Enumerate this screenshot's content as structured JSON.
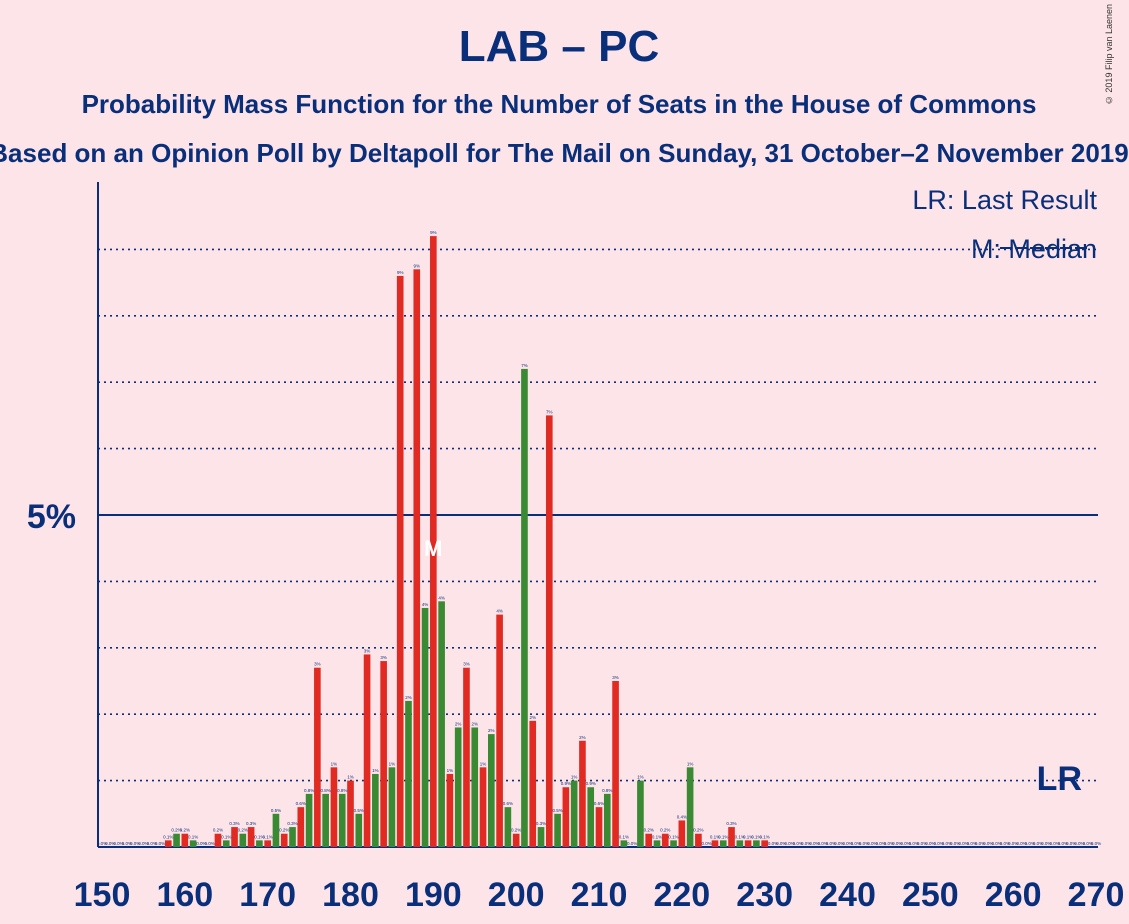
{
  "header": {
    "title": "LAB – PC",
    "subtitle": "Probability Mass Function for the Number of Seats in the House of Commons",
    "subtitle2": "Based on an Opinion Poll by Deltapoll for The Mail on Sunday, 31 October–2 November 2019",
    "copyright": "© 2019 Filip van Laenen"
  },
  "legend": {
    "lr": "LR: Last Result",
    "m": "M: Median"
  },
  "markers": {
    "lr_label": "LR",
    "lr_seat": 270,
    "median_label": "M",
    "median_seat": 190
  },
  "colors": {
    "red": "#e02a22",
    "green": "#3a8a34",
    "axis": "#0a2f7a",
    "background": "#fde4e8"
  },
  "chart_data": {
    "type": "bar",
    "xlim": [
      150,
      270
    ],
    "ylim": [
      0,
      10
    ],
    "x_ticks": [
      150,
      160,
      170,
      180,
      190,
      200,
      210,
      220,
      230,
      240,
      250,
      260,
      270
    ],
    "y_tick_label": "5%",
    "y_major": 5,
    "grid_minor": [
      1,
      2,
      3,
      4,
      6,
      7,
      8,
      9
    ],
    "series": [
      {
        "name": "red",
        "values": [
          [
            150,
            0
          ],
          [
            152,
            0
          ],
          [
            154,
            0
          ],
          [
            156,
            0
          ],
          [
            158,
            0.1
          ],
          [
            160,
            0.2
          ],
          [
            162,
            0
          ],
          [
            164,
            0.2
          ],
          [
            166,
            0.3
          ],
          [
            168,
            0.3
          ],
          [
            170,
            0.1
          ],
          [
            172,
            0.2
          ],
          [
            174,
            0.6
          ],
          [
            176,
            2.7
          ],
          [
            178,
            1.2
          ],
          [
            180,
            1.0
          ],
          [
            182,
            2.9
          ],
          [
            184,
            2.8
          ],
          [
            186,
            8.6
          ],
          [
            188,
            8.7
          ],
          [
            190,
            9.2
          ],
          [
            192,
            1.1
          ],
          [
            194,
            2.7
          ],
          [
            196,
            1.2
          ],
          [
            198,
            3.5
          ],
          [
            200,
            0.2
          ],
          [
            202,
            1.9
          ],
          [
            204,
            6.5
          ],
          [
            206,
            0.9
          ],
          [
            208,
            1.6
          ],
          [
            210,
            0.6
          ],
          [
            212,
            2.5
          ],
          [
            214,
            0
          ],
          [
            216,
            0.2
          ],
          [
            218,
            0.2
          ],
          [
            220,
            0.4
          ],
          [
            222,
            0.2
          ],
          [
            224,
            0.1
          ],
          [
            226,
            0.3
          ],
          [
            228,
            0.1
          ],
          [
            230,
            0.1
          ],
          [
            232,
            0
          ],
          [
            234,
            0
          ],
          [
            236,
            0
          ],
          [
            238,
            0
          ],
          [
            240,
            0
          ],
          [
            242,
            0
          ],
          [
            244,
            0
          ],
          [
            246,
            0
          ],
          [
            248,
            0
          ],
          [
            250,
            0
          ],
          [
            252,
            0
          ],
          [
            254,
            0
          ],
          [
            256,
            0
          ],
          [
            258,
            0
          ],
          [
            260,
            0
          ],
          [
            262,
            0
          ],
          [
            264,
            0
          ],
          [
            266,
            0
          ],
          [
            268,
            0
          ],
          [
            270,
            0
          ]
        ]
      },
      {
        "name": "green",
        "values": [
          [
            151,
            0
          ],
          [
            153,
            0
          ],
          [
            155,
            0
          ],
          [
            157,
            0
          ],
          [
            159,
            0.2
          ],
          [
            161,
            0.1
          ],
          [
            163,
            0
          ],
          [
            165,
            0.1
          ],
          [
            167,
            0.2
          ],
          [
            169,
            0.1
          ],
          [
            171,
            0.5
          ],
          [
            173,
            0.3
          ],
          [
            175,
            0.8
          ],
          [
            177,
            0.8
          ],
          [
            179,
            0.8
          ],
          [
            181,
            0.5
          ],
          [
            183,
            1.1
          ],
          [
            185,
            1.2
          ],
          [
            187,
            2.2
          ],
          [
            189,
            3.6
          ],
          [
            191,
            3.7
          ],
          [
            193,
            1.8
          ],
          [
            195,
            1.8
          ],
          [
            197,
            1.7
          ],
          [
            199,
            0.6
          ],
          [
            201,
            7.2
          ],
          [
            203,
            0.3
          ],
          [
            205,
            0.5
          ],
          [
            207,
            1.0
          ],
          [
            209,
            0.9
          ],
          [
            211,
            0.8
          ],
          [
            213,
            0.1
          ],
          [
            215,
            1.0
          ],
          [
            217,
            0.1
          ],
          [
            219,
            0.1
          ],
          [
            221,
            1.2
          ],
          [
            223,
            0
          ],
          [
            225,
            0.1
          ],
          [
            227,
            0.1
          ],
          [
            229,
            0.1
          ],
          [
            231,
            0
          ],
          [
            233,
            0
          ],
          [
            235,
            0
          ],
          [
            237,
            0
          ],
          [
            239,
            0
          ],
          [
            241,
            0
          ],
          [
            243,
            0
          ],
          [
            245,
            0
          ],
          [
            247,
            0
          ],
          [
            249,
            0
          ],
          [
            251,
            0
          ],
          [
            253,
            0
          ],
          [
            255,
            0
          ],
          [
            257,
            0
          ],
          [
            259,
            0
          ],
          [
            261,
            0
          ],
          [
            263,
            0
          ],
          [
            265,
            0
          ],
          [
            267,
            0
          ],
          [
            269,
            0
          ]
        ]
      }
    ]
  }
}
